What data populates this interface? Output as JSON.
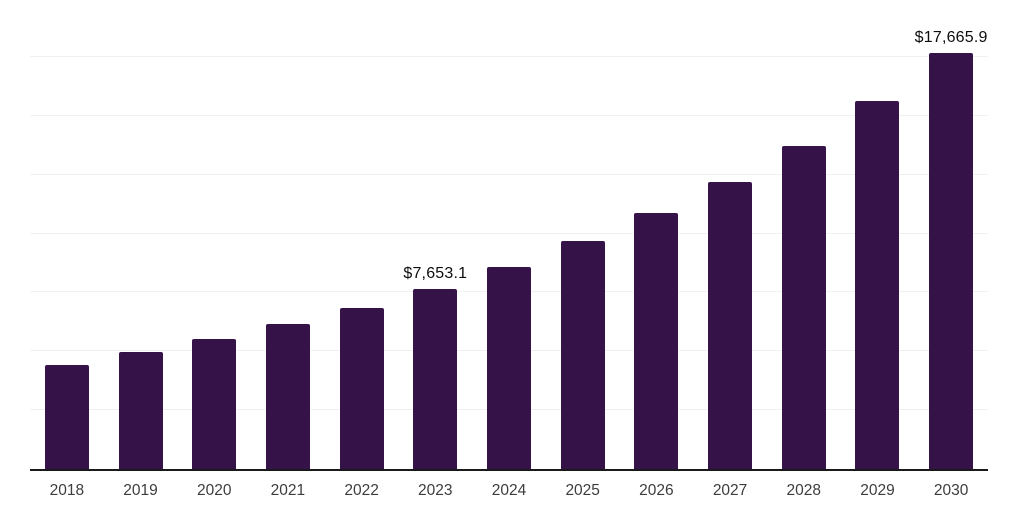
{
  "chart_data": {
    "type": "bar",
    "title": "",
    "xlabel": "",
    "ylabel": "",
    "categories": [
      "2018",
      "2019",
      "2020",
      "2021",
      "2022",
      "2023",
      "2024",
      "2025",
      "2026",
      "2027",
      "2028",
      "2029",
      "2030"
    ],
    "values": [
      4430,
      4980,
      5535,
      6170,
      6850,
      7653.1,
      8590,
      9690,
      10880,
      12200,
      13720,
      15630,
      17665.9
    ],
    "labeled_points": [
      {
        "category": "2023",
        "label": "$7,653.1"
      },
      {
        "category": "2030",
        "label": "$17,665.9"
      }
    ],
    "ylim": [
      0,
      20000
    ],
    "y_gridline_step": 2500,
    "grid": true,
    "y_axis_labels_visible": false,
    "legend": "none",
    "bar_color": "#351349",
    "axis_line_color": "#1a1a1a",
    "gridline_color": "#f0f0f0",
    "tick_label_color": "#3d3d3d",
    "value_label_color": "#0d0d0d"
  }
}
